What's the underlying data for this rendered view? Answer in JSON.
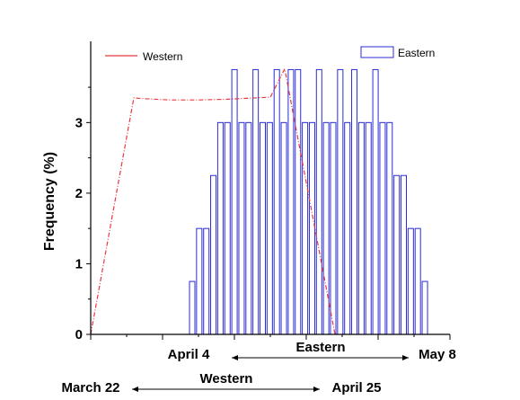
{
  "chart_data": {
    "type": "bar",
    "ylabel": "Frequency (%)",
    "ylim": [
      0,
      4.15
    ],
    "yticks": [
      0,
      1,
      2,
      3
    ],
    "legend": [
      {
        "name": "Western",
        "style": "line",
        "color": "#e8393f"
      },
      {
        "name": "Eastern",
        "style": "hollow-bar",
        "color": "#2b2bd6"
      }
    ],
    "bottom_axis": {
      "labels": [
        "April 4",
        "May 8"
      ],
      "period_label": "Eastern",
      "period_start": "April 4",
      "period_end": "May 8"
    },
    "secondary_axis": {
      "labels": [
        "March 22",
        "April 25"
      ],
      "period_label": "Western",
      "period_start": "March 22",
      "period_end": "April 25"
    },
    "series": [
      {
        "name": "Eastern",
        "type": "bar",
        "color": "#2b2bd6",
        "x": [
          "2014-04-05",
          "2014-04-06",
          "2014-04-07",
          "2014-04-08",
          "2014-04-09",
          "2014-04-10",
          "2014-04-11",
          "2014-04-12",
          "2014-04-13",
          "2014-04-14",
          "2014-04-15",
          "2014-04-16",
          "2014-04-17",
          "2014-04-18",
          "2014-04-19",
          "2014-04-20",
          "2014-04-21",
          "2014-04-22",
          "2014-04-23",
          "2014-04-24",
          "2014-04-25",
          "2014-04-26",
          "2014-04-27",
          "2014-04-28",
          "2014-04-29",
          "2014-04-30",
          "2014-05-01",
          "2014-05-02",
          "2014-05-03",
          "2014-05-04",
          "2014-05-05",
          "2014-05-06",
          "2014-05-07",
          "2014-05-08"
        ],
        "values": [
          0.75,
          1.5,
          1.5,
          2.25,
          3.0,
          3.0,
          3.75,
          3.0,
          3.0,
          3.75,
          3.0,
          3.0,
          3.75,
          3.0,
          3.75,
          3.75,
          3.0,
          3.0,
          3.75,
          3.0,
          3.0,
          3.75,
          3.0,
          3.75,
          3.0,
          3.0,
          3.75,
          3.0,
          3.0,
          2.25,
          2.25,
          1.5,
          1.5,
          0.75
        ]
      },
      {
        "name": "Western",
        "type": "line",
        "color": "#e8393f",
        "x": [
          "2014-03-22",
          "2014-03-28",
          "2014-03-29",
          "2014-04-02",
          "2014-04-06",
          "2014-04-10",
          "2014-04-16",
          "2014-04-18",
          "2014-04-25"
        ],
        "values": [
          0,
          3.35,
          3.34,
          3.32,
          3.32,
          3.33,
          3.36,
          3.76,
          0
        ]
      }
    ]
  }
}
